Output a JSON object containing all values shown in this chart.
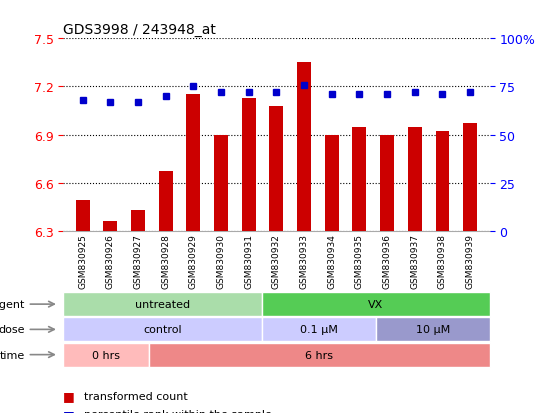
{
  "title": "GDS3998 / 243948_at",
  "samples": [
    "GSM830925",
    "GSM830926",
    "GSM830927",
    "GSM830928",
    "GSM830929",
    "GSM830930",
    "GSM830931",
    "GSM830932",
    "GSM830933",
    "GSM830934",
    "GSM830935",
    "GSM830936",
    "GSM830937",
    "GSM830938",
    "GSM830939"
  ],
  "bar_values": [
    6.49,
    6.36,
    6.43,
    6.67,
    7.15,
    6.9,
    7.13,
    7.08,
    7.35,
    6.9,
    6.95,
    6.9,
    6.95,
    6.92,
    6.97
  ],
  "dot_values": [
    68,
    67,
    67,
    70,
    75,
    72,
    72,
    72,
    76,
    71,
    71,
    71,
    72,
    71,
    72
  ],
  "ylim": [
    6.3,
    7.5
  ],
  "y2lim": [
    0,
    100
  ],
  "yticks": [
    6.3,
    6.6,
    6.9,
    7.2,
    7.5
  ],
  "y2ticks": [
    0,
    25,
    50,
    75,
    100
  ],
  "bar_color": "#cc0000",
  "dot_color": "#0000cc",
  "bar_width": 0.5,
  "background_color": "#ffffff"
}
